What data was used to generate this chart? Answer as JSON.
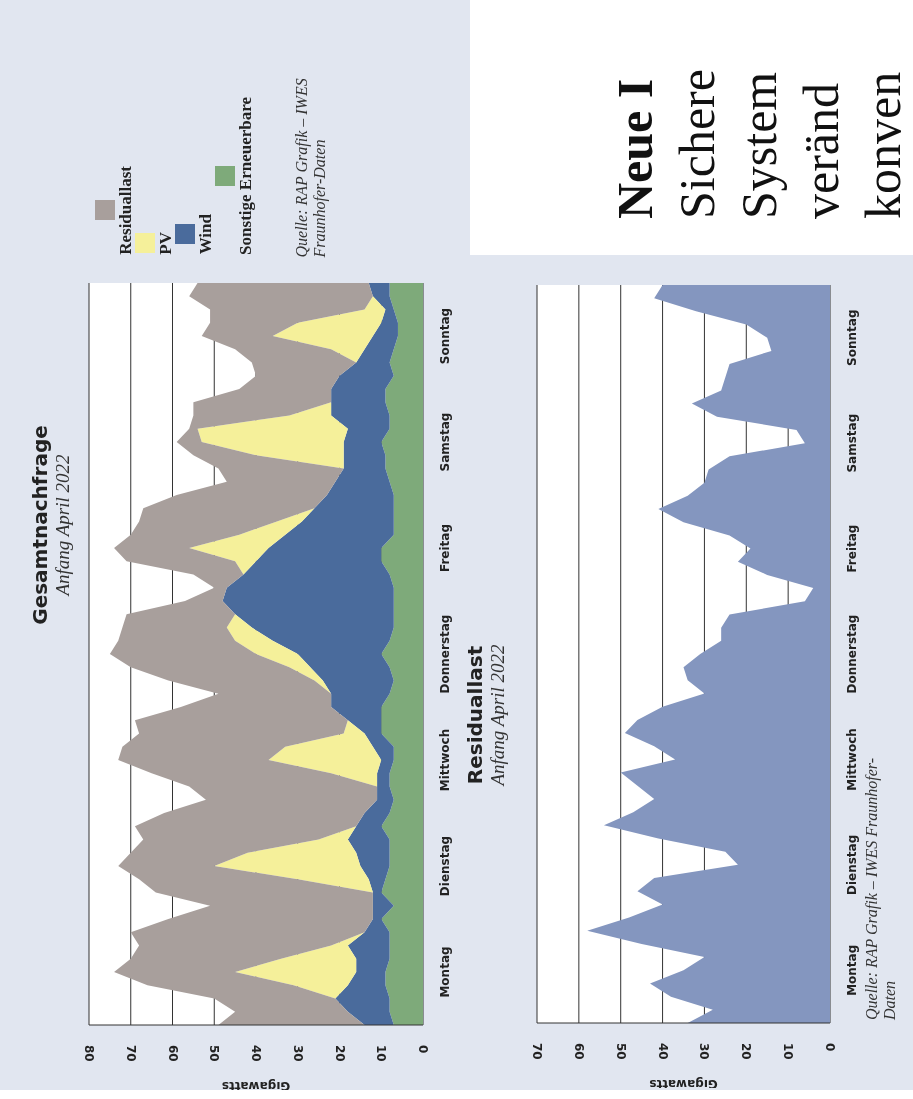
{
  "chart_data": [
    {
      "type": "area",
      "orientation": "horizontal",
      "title": "Gesamtnachfrage",
      "subtitle": "Anfang April 2022",
      "xlabel": "Gigawatts",
      "stacked": true,
      "grid": "x",
      "legend": "top left",
      "annotations": [
        "Quelle: RAP Grafik – IWES Fraunhofer-Daten"
      ],
      "xlim": [
        80,
        0
      ],
      "xticks": [
        0,
        10,
        20,
        30,
        40,
        50,
        60,
        70,
        80
      ],
      "categories": [
        null,
        null,
        null,
        null,
        "Sonntag",
        null,
        null,
        null,
        null,
        null,
        null,
        null,
        "Samstag",
        null,
        null,
        null,
        null,
        null,
        null,
        null,
        "Freitag",
        null,
        null,
        null,
        null,
        null,
        null,
        null,
        "Donnerstag",
        null,
        null,
        null,
        null,
        null,
        null,
        null,
        "Mittwoch",
        null,
        null,
        null,
        null,
        null,
        null,
        null,
        "Dienstag",
        null,
        null,
        null,
        null,
        null,
        null,
        null,
        "Montag",
        null,
        null,
        null,
        null
      ],
      "series": [
        {
          "name": "Sonstige Erneuerbare",
          "color": "#7eaa7a",
          "values": [
            8,
            8,
            7,
            6,
            6,
            7,
            8,
            7,
            9,
            9,
            8,
            8,
            10,
            9,
            9,
            8,
            7,
            7,
            7,
            7,
            10,
            10,
            8,
            7,
            7,
            7,
            7,
            8,
            10,
            8,
            7,
            8,
            10,
            10,
            10,
            7,
            7,
            8,
            8,
            7,
            8,
            10,
            8,
            8,
            8,
            9,
            10,
            7,
            10,
            8,
            8,
            8,
            9,
            9,
            8,
            8,
            7
          ]
        },
        {
          "name": "Wind",
          "color": "#4a6b9c",
          "values": [
            5,
            4,
            2,
            4,
            6,
            7,
            8,
            13,
            13,
            13,
            14,
            10,
            9,
            10,
            10,
            13,
            16,
            19,
            22,
            26,
            27,
            30,
            35,
            40,
            41,
            38,
            34,
            28,
            20,
            19,
            17,
            14,
            12,
            8,
            4,
            5,
            3,
            3,
            3,
            4,
            6,
            6,
            10,
            8,
            7,
            4,
            2,
            5,
            2,
            6,
            10,
            8,
            7,
            9,
            13,
            10,
            7
          ]
        },
        {
          "name": "PV",
          "color": "#f5f09a",
          "values": [
            0,
            0,
            5,
            20,
            24,
            8,
            0,
            0,
            0,
            0,
            10,
            36,
            34,
            21,
            0,
            0,
            0,
            0,
            6,
            11,
            19,
            5,
            0,
            0,
            0,
            0,
            6,
            9,
            10,
            5,
            2,
            0,
            0,
            0,
            5,
            21,
            27,
            11,
            0,
            0,
            0,
            0,
            7,
            26,
            35,
            17,
            0,
            0,
            0,
            0,
            4,
            18,
            29,
            13,
            0,
            0,
            0
          ]
        },
        {
          "name": "Residuallast",
          "color": "#a89f9c",
          "values": [
            41,
            44,
            37,
            21,
            17,
            23,
            25,
            20,
            22,
            33,
            23,
            2,
            6,
            15,
            30,
            26,
            36,
            41,
            33,
            26,
            18,
            26,
            12,
            3,
            9,
            26,
            25,
            28,
            35,
            38,
            35,
            27,
            36,
            51,
            49,
            39,
            36,
            43,
            45,
            41,
            48,
            53,
            42,
            28,
            23,
            38,
            52,
            39,
            49,
            56,
            46,
            36,
            29,
            35,
            29,
            27,
            35
          ]
        }
      ]
    },
    {
      "type": "area",
      "orientation": "horizontal",
      "title": "Residuallast",
      "subtitle": "Anfang April 2022",
      "xlabel": "Gigawatts",
      "grid": "x",
      "annotations": [
        "Quelle: RAP Grafik – IWES Fraunhofer-Daten"
      ],
      "xlim": [
        70,
        0
      ],
      "xticks": [
        0,
        10,
        20,
        30,
        40,
        50,
        60,
        70
      ],
      "categories": [
        null,
        null,
        null,
        null,
        "Sonntag",
        null,
        null,
        null,
        null,
        null,
        null,
        null,
        "Samstag",
        null,
        null,
        null,
        null,
        null,
        null,
        null,
        "Freitag",
        null,
        null,
        null,
        null,
        null,
        null,
        null,
        "Donnerstag",
        null,
        null,
        null,
        null,
        null,
        null,
        null,
        "Mittwoch",
        null,
        null,
        null,
        null,
        null,
        null,
        null,
        "Dienstag",
        null,
        null,
        null,
        null,
        null,
        null,
        null,
        "Montag",
        null,
        null,
        null,
        null
      ],
      "series": [
        {
          "color": "#8496bf",
          "values": [
            40,
            42,
            32,
            20,
            15,
            14,
            24,
            25,
            26,
            33,
            27,
            8,
            6,
            24,
            29,
            30,
            34,
            41,
            35,
            24,
            19,
            22,
            15,
            4,
            6,
            24,
            26,
            26,
            31,
            35,
            34,
            30,
            40,
            46,
            49,
            42,
            37,
            50,
            46,
            42,
            47,
            54,
            41,
            25,
            22,
            42,
            46,
            40,
            48,
            58,
            45,
            30,
            35,
            43,
            38,
            28,
            34
          ]
        }
      ]
    },
    {
      "type": "other",
      "annotations": [
        "Neue I",
        "Sichere",
        "System",
        "veränd",
        "konven"
      ]
    }
  ]
}
